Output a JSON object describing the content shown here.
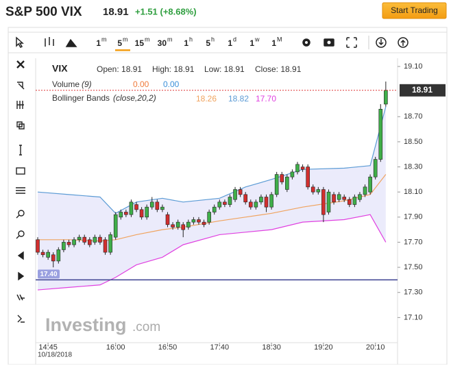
{
  "header": {
    "title": "S&P 500 VIX",
    "price": "18.91",
    "change": "+1.51 (+8.68%)",
    "button": "Start Trading"
  },
  "toolbar": {
    "intervals": [
      {
        "n": "1",
        "u": "m"
      },
      {
        "n": "5",
        "u": "m"
      },
      {
        "n": "15",
        "u": "m"
      },
      {
        "n": "30",
        "u": "m"
      },
      {
        "n": "1",
        "u": "h"
      },
      {
        "n": "5",
        "u": "h"
      },
      {
        "n": "1",
        "u": "d"
      },
      {
        "n": "1",
        "u": "w"
      },
      {
        "n": "1",
        "u": "M"
      }
    ]
  },
  "chart_data": {
    "type": "candlestick",
    "symbol": "VIX",
    "legend": {
      "ohlc": [
        "Open: 18.91",
        "High: 18.91",
        "Low: 18.91",
        "Close: 18.91"
      ],
      "volume": {
        "name": "Volume",
        "params": "(9)",
        "values": [
          "0.00",
          "0.00"
        ]
      },
      "bollinger": {
        "name": "Bollinger Bands",
        "params": "(close,20,2)",
        "values": [
          "18.26",
          "18.82",
          "17.70"
        ]
      }
    },
    "open": [
      17.72,
      17.62,
      17.58,
      17.6,
      17.55,
      17.64,
      17.7,
      17.68,
      17.72,
      17.74,
      17.72,
      17.7,
      17.74,
      17.72,
      17.62,
      17.74,
      17.9,
      17.94,
      17.92,
      18.0,
      17.96,
      17.9,
      17.98,
      18.02,
      17.96,
      17.92,
      17.84,
      17.82,
      17.84,
      17.82,
      17.86,
      17.88,
      17.86,
      17.86,
      17.94,
      17.98,
      18.02,
      18.0,
      18.04,
      18.12,
      18.08,
      18.02,
      17.98,
      18.02,
      18.06,
      17.98,
      18.08,
      18.24,
      18.12,
      18.22,
      18.26,
      18.3,
      18.3,
      18.14,
      18.1,
      18.12,
      17.94,
      18.08,
      18.04,
      18.06,
      18.04,
      18.0,
      18.04,
      18.08,
      18.1,
      18.22,
      18.36,
      18.8
    ],
    "high": [
      17.74,
      17.64,
      17.64,
      17.62,
      17.66,
      17.72,
      17.72,
      17.74,
      17.76,
      17.76,
      17.74,
      17.76,
      17.76,
      17.74,
      17.78,
      17.94,
      17.96,
      17.96,
      18.04,
      18.02,
      17.98,
      18.0,
      18.06,
      18.04,
      18.0,
      17.94,
      17.86,
      17.88,
      17.86,
      17.88,
      17.9,
      17.9,
      17.88,
      17.96,
      18.0,
      18.04,
      18.04,
      18.08,
      18.14,
      18.14,
      18.1,
      18.04,
      18.04,
      18.08,
      18.08,
      18.1,
      18.26,
      18.26,
      18.24,
      18.28,
      18.34,
      18.32,
      18.32,
      18.16,
      18.14,
      18.14,
      18.12,
      18.1,
      18.1,
      18.08,
      18.06,
      18.08,
      18.1,
      18.16,
      18.24,
      18.38,
      18.8,
      18.98
    ],
    "low": [
      17.6,
      17.58,
      17.56,
      17.5,
      17.53,
      17.62,
      17.66,
      17.66,
      17.7,
      17.68,
      17.66,
      17.68,
      17.68,
      17.6,
      17.6,
      17.72,
      17.88,
      17.9,
      17.9,
      17.94,
      17.88,
      17.88,
      17.96,
      17.94,
      17.94,
      17.82,
      17.8,
      17.8,
      17.74,
      17.8,
      17.84,
      17.84,
      17.82,
      17.84,
      17.92,
      17.96,
      17.98,
      17.98,
      18.02,
      18.06,
      18.0,
      17.96,
      17.96,
      18.0,
      17.94,
      17.96,
      18.06,
      18.16,
      18.1,
      18.2,
      18.24,
      18.26,
      18.12,
      18.08,
      18.08,
      17.86,
      17.92,
      18.0,
      18.02,
      18.02,
      17.98,
      17.98,
      18.02,
      18.06,
      18.08,
      18.2,
      18.34,
      18.78
    ],
    "close": [
      17.62,
      17.6,
      17.62,
      17.55,
      17.64,
      17.7,
      17.68,
      17.72,
      17.74,
      17.7,
      17.68,
      17.74,
      17.7,
      17.62,
      17.76,
      17.92,
      17.94,
      17.92,
      18.02,
      17.96,
      17.9,
      17.98,
      18.02,
      17.96,
      17.98,
      17.84,
      17.82,
      17.86,
      17.8,
      17.86,
      17.88,
      17.86,
      17.84,
      17.94,
      17.98,
      18.02,
      18.0,
      18.06,
      18.12,
      18.08,
      18.02,
      17.98,
      18.02,
      18.06,
      17.98,
      18.08,
      18.24,
      18.18,
      18.22,
      18.26,
      18.32,
      18.28,
      18.14,
      18.1,
      18.12,
      17.92,
      18.1,
      18.02,
      18.08,
      18.04,
      18.0,
      18.06,
      18.08,
      18.14,
      18.22,
      18.36,
      18.76,
      18.91
    ],
    "colors": {
      "up": "#3fae49",
      "down": "#d22f2f"
    },
    "bollinger": {
      "x": [
        0,
        6,
        12,
        15,
        19,
        24,
        28,
        35,
        40,
        45,
        51,
        59,
        64,
        67
      ],
      "upper": [
        18.1,
        18.08,
        18.06,
        17.93,
        18.02,
        18.05,
        18.02,
        18.05,
        18.14,
        18.2,
        18.28,
        18.29,
        18.31,
        18.78
      ],
      "middle": [
        17.72,
        17.72,
        17.71,
        17.72,
        17.76,
        17.8,
        17.82,
        17.87,
        17.9,
        17.93,
        17.98,
        18.03,
        18.08,
        18.24
      ],
      "lower": [
        17.32,
        17.34,
        17.36,
        17.42,
        17.52,
        17.58,
        17.68,
        17.76,
        17.78,
        17.8,
        17.86,
        17.88,
        17.92,
        17.7
      ],
      "colors": {
        "upper": "#5b9bd5",
        "middle": "#f0a35e",
        "lower": "#e040e0",
        "fill": "#e6e6fa"
      }
    },
    "ylim": [
      16.9,
      19.16
    ],
    "yticks": [
      {
        "value": 19.1,
        "label": "19.10"
      },
      {
        "value": 18.7,
        "label": "18.70"
      },
      {
        "value": 18.5,
        "label": "18.50"
      },
      {
        "value": 18.3,
        "label": "18.30"
      },
      {
        "value": 18.1,
        "label": "18.10"
      },
      {
        "value": 17.9,
        "label": "17.90"
      },
      {
        "value": 17.7,
        "label": "17.70"
      },
      {
        "value": 17.5,
        "label": "17.50"
      },
      {
        "value": 17.3,
        "label": "17.30"
      },
      {
        "value": 17.1,
        "label": "17.10"
      }
    ],
    "xticks": [
      {
        "value": 2,
        "label": "14:45"
      },
      {
        "value": 15,
        "label": "16:00"
      },
      {
        "value": 25,
        "label": "16:50"
      },
      {
        "value": 35,
        "label": "17:40"
      },
      {
        "value": 45,
        "label": "18:30"
      },
      {
        "value": 55,
        "label": "19:20"
      },
      {
        "value": 65,
        "label": "20:10"
      }
    ],
    "date": "10/18/2018",
    "last_price": {
      "value": 18.91,
      "label": "18.91"
    },
    "hline": {
      "value": 17.4,
      "label": "17.40",
      "color": "#3a3f8f"
    },
    "watermark": [
      "Investing",
      ".com"
    ]
  }
}
